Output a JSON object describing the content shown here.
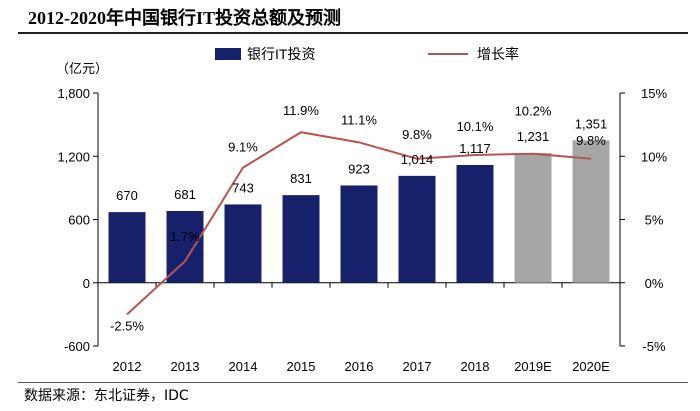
{
  "header": {
    "title": "2012-2020年中国银行IT投资总额及预测"
  },
  "footer": {
    "source": "数据来源：东北证券，IDC"
  },
  "colors": {
    "bar_actual": "#17216B",
    "bar_forecast": "#A6A6A6",
    "line": "#B85450",
    "axis": "#000000"
  },
  "chart_data": {
    "type": "bar",
    "title": "2012-2020年中国银行IT投资总额及预测",
    "categories": [
      "2012",
      "2013",
      "2014",
      "2015",
      "2016",
      "2017",
      "2018",
      "2019E",
      "2020E"
    ],
    "series": [
      {
        "name": "银行IT投资",
        "type": "bar",
        "axis": "left",
        "values": [
          670,
          681,
          743,
          831,
          923,
          1014,
          1117,
          1231,
          1351
        ],
        "labels": [
          "670",
          "681",
          "743",
          "831",
          "923",
          "1,014",
          "1,117",
          "1,231",
          "1,351"
        ],
        "forecast_from_index": 7
      },
      {
        "name": "增长率",
        "type": "line",
        "axis": "right",
        "values": [
          -2.5,
          1.7,
          9.1,
          11.9,
          11.1,
          9.8,
          10.1,
          10.2,
          9.8
        ],
        "labels": [
          "-2.5%",
          "1.7%",
          "9.1%",
          "11.9%",
          "11.1%",
          "9.8%",
          "10.1%",
          "10.2%",
          "9.8%"
        ]
      }
    ],
    "left_axis": {
      "unit": "（亿元）",
      "range": [
        -600,
        1800
      ],
      "ticks": [
        1800,
        1200,
        600,
        0,
        -600
      ],
      "tick_labels": [
        "1,800",
        "1,200",
        "600",
        "0",
        "-600"
      ]
    },
    "right_axis": {
      "range": [
        -5,
        15
      ],
      "ticks": [
        15,
        10,
        5,
        0,
        -5
      ],
      "tick_labels": [
        "15%",
        "10%",
        "5%",
        "0%",
        "-5%"
      ]
    },
    "legend": {
      "position": "top",
      "items": [
        "银行IT投资",
        "增长率"
      ]
    },
    "grid": false
  }
}
